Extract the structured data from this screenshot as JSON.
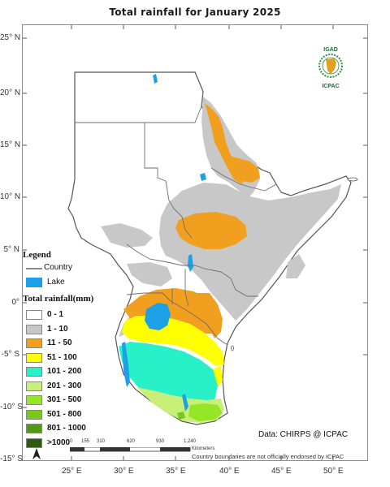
{
  "title": "Total rainfall  for January  2025",
  "lat_ticks": [
    "25° N",
    "20° N",
    "15° N",
    "10° N",
    "5° N",
    "0°",
    "-5° S",
    "-10° S",
    "-15° S"
  ],
  "lon_ticks": [
    "25° E",
    "30° E",
    "35° E",
    "40° E",
    "45° E",
    "50° E"
  ],
  "legend": {
    "title": "Legend",
    "country_label": "Country",
    "lake_label": "Lake",
    "rain_title": "Total rainfall(mm)",
    "classes": [
      {
        "label": "0 - 1",
        "color": "#ffffff"
      },
      {
        "label": "1 - 10",
        "color": "#c8c8c8"
      },
      {
        "label": "11 - 50",
        "color": "#f0a01e"
      },
      {
        "label": "51 - 100",
        "color": "#ffff00"
      },
      {
        "label": "101 - 200",
        "color": "#28f0c8"
      },
      {
        "label": "201 - 300",
        "color": "#c8f078"
      },
      {
        "label": "301 - 500",
        "color": "#96e628"
      },
      {
        "label": "501 - 800",
        "color": "#78c81e"
      },
      {
        "label": "801 - 1000",
        "color": "#509a14"
      },
      {
        "label": ">1000",
        "color": "#2e5a0e"
      }
    ],
    "lake_color": "#1ea0e6"
  },
  "scale_bar": {
    "ticks": [
      "0",
      "155",
      "310",
      "620",
      "930",
      "1,240"
    ],
    "unit": "Kilometers"
  },
  "credit": "Data: CHIRPS @ ICPAC",
  "disclaimer": "Country boundaries are not officially endorsed by ICPAC",
  "logo": {
    "top_text": "IGAD",
    "bottom_text": "ICPAC"
  }
}
